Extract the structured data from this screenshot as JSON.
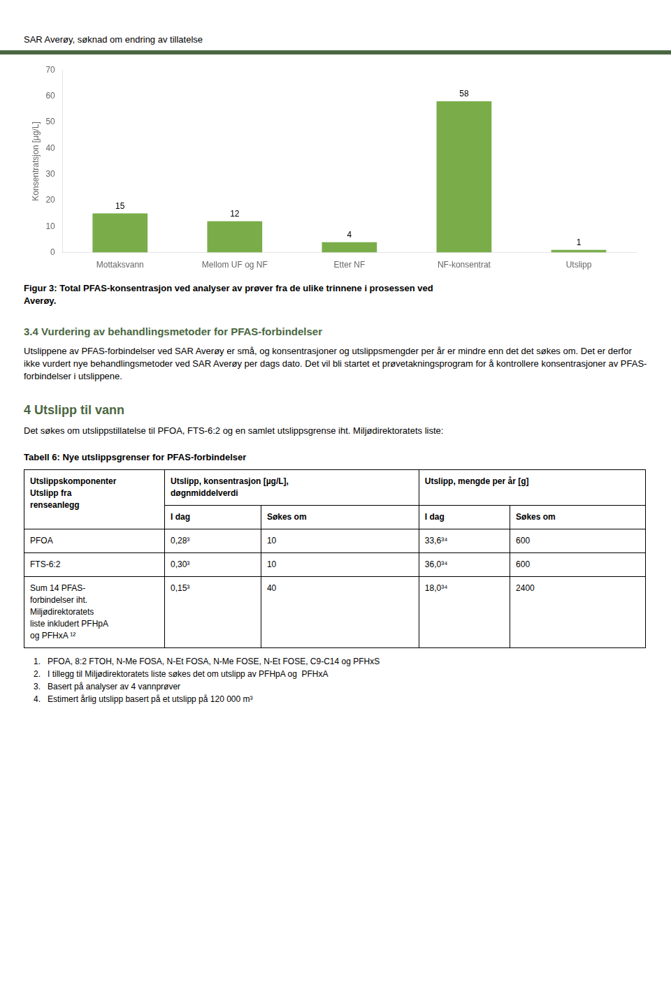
{
  "header": "SAR Averøy, søknad om endring av tillatelse",
  "chart_data": {
    "type": "bar",
    "categories": [
      "Mottaksvann",
      "Mellom UF og NF",
      "Etter NF",
      "NF-konsentrat",
      "Utslipp"
    ],
    "values": [
      15,
      12,
      4,
      58,
      1
    ],
    "color": "#7aad4a",
    "ylabel": "Konsentratsjon [μg/L]",
    "ylim": [
      0,
      70
    ],
    "yticks": [
      0,
      10,
      20,
      30,
      40,
      50,
      60,
      70
    ],
    "grid": false,
    "data_labels": true
  },
  "caption": [
    "Figur 3: Total PFAS-konsentrasjon ved analyser av prøver fra de ulike trinnene i prosessen ved",
    "Averøy."
  ],
  "sections": [
    {
      "heading": "3.4   Vurdering av behandlingsmetoder for PFAS-forbindelser",
      "level": 2,
      "text": "Utslippene av PFAS-forbindelser ved SAR Averøy er små, og konsentrasjoner og utslippsmengder per år er mindre enn det det søkes om. Det er derfor ikke vurdert nye behandlingsmetoder ved SAR Averøy per dags dato. Det vil bli startet et prøvetakningsprogram for å kontrollere konsentrasjoner av PFAS-forbindelser i utslippene."
    },
    {
      "heading": "4   Utslipp til vann",
      "level": 1,
      "text": "Det søkes om utslippstillatelse til PFOA, FTS-6:2 og en samlet utslippsgrense iht. Miljødirektoratets liste:"
    }
  ],
  "table": {
    "title": "Tabell 6: Nye utslippsgrenser for PFAS-forbindelser",
    "header": [
      [
        "Utslippskomponenter\nUtslipp fra\nrenseanlegg",
        "Utslipp, konsentrasjon [µg/L],\ndøgnmiddelverdi",
        "Utslipp, mengde per år [g]"
      ],
      [
        "I dag",
        "Søkes om",
        "I dag",
        "Søkes om"
      ]
    ],
    "rows": [
      [
        "PFOA",
        "0,28³",
        "10",
        "33,6³⁴",
        "600"
      ],
      [
        "FTS-6:2",
        "0,30³",
        "10",
        "36,0³⁴",
        "600"
      ],
      [
        "Sum 14 PFAS-\nforbindelser iht.\nMiljødirektoratets\nliste inkludert PFHpA\nog PFHxA ¹²",
        "0,15³",
        "40",
        "18,0³⁴",
        "2400"
      ]
    ]
  },
  "footnotes": [
    "1.\tPFOA, 8:2 FTOH, N-Me FOSA, N-Et FOSA, N-Me FOSE, N-Et FOSE, C9-C14 og PFHxS",
    "2.\tI tillegg til Miljødirektoratets liste søkes det om utslipp av PFHpA og  PFHxA",
    "3.\tBasert på analyser av 4 vannprøver",
    "4.\tEstimert årlig utslipp basert på et utslipp på 120 000 m³"
  ]
}
